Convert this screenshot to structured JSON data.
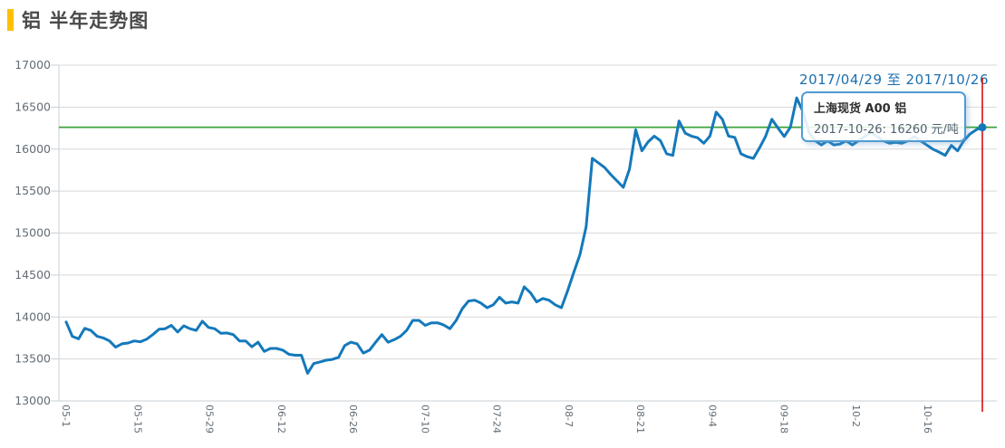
{
  "header": {
    "title": "铝 半年走势图",
    "accent_color": "#ffc000"
  },
  "date_range": "2017/04/29 至 2017/10/26",
  "tooltip": {
    "title": "上海现货 A00 铝",
    "value_line": "2017-10-26: 16260 元/吨"
  },
  "chart_data": {
    "type": "line",
    "title": "铝 半年走势图",
    "start_date": "2017-04-29",
    "end_date": "2017-10-26",
    "unit": "元/吨",
    "grid": "horizontal",
    "legend": "none",
    "x_tick_labels": [
      "05-1",
      "05-15",
      "05-29",
      "06-12",
      "06-26",
      "07-10",
      "07-24",
      "08-7",
      "08-21",
      "09-4",
      "09-18",
      "10-2",
      "10-16"
    ],
    "y_ticks": [
      13000,
      13500,
      14000,
      14500,
      15000,
      15500,
      16000,
      16500,
      17000
    ],
    "ylim": [
      13000,
      17000
    ],
    "reference_line_value": 16260,
    "last_point": {
      "date": "2017-10-26",
      "value": 16260
    },
    "series": [
      {
        "name": "上海现货 A00 铝",
        "values": [
          13940,
          13770,
          13740,
          13865,
          13840,
          13770,
          13750,
          13715,
          13640,
          13680,
          13690,
          13715,
          13705,
          13735,
          13790,
          13855,
          13860,
          13900,
          13820,
          13895,
          13860,
          13840,
          13950,
          13875,
          13860,
          13805,
          13810,
          13790,
          13715,
          13715,
          13645,
          13700,
          13590,
          13625,
          13625,
          13605,
          13555,
          13545,
          13545,
          13330,
          13445,
          13465,
          13485,
          13495,
          13520,
          13660,
          13700,
          13680,
          13570,
          13605,
          13700,
          13790,
          13700,
          13730,
          13770,
          13840,
          13960,
          13960,
          13900,
          13930,
          13930,
          13905,
          13860,
          13960,
          14100,
          14190,
          14200,
          14165,
          14110,
          14145,
          14235,
          14165,
          14180,
          14165,
          14360,
          14290,
          14180,
          14220,
          14200,
          14145,
          14110,
          14310,
          14530,
          14745,
          15075,
          15890,
          15835,
          15780,
          15695,
          15620,
          15545,
          15760,
          16230,
          15980,
          16085,
          16155,
          16100,
          15945,
          15925,
          16335,
          16190,
          16155,
          16135,
          16070,
          16155,
          16440,
          16355,
          16155,
          16140,
          15945,
          15910,
          15890,
          16015,
          16155,
          16355,
          16250,
          16150,
          16260,
          16610,
          16450,
          16200,
          16100,
          16050,
          16100,
          16050,
          16060,
          16100,
          16050,
          16100,
          16150,
          16200,
          16150,
          16100,
          16070,
          16080,
          16070,
          16100,
          16150,
          16100,
          16050,
          16000,
          15965,
          15925,
          16045,
          15980,
          16100,
          16180,
          16230,
          16260
        ]
      }
    ],
    "colors": {
      "line": "#1479bb",
      "reference_line": "#3ca23c",
      "marker_line": "#d60000",
      "grid": "#d8d8d8",
      "axis": "#c9d0d6",
      "tick_text": "#636c75",
      "marker_dot": "#1479bb"
    }
  }
}
